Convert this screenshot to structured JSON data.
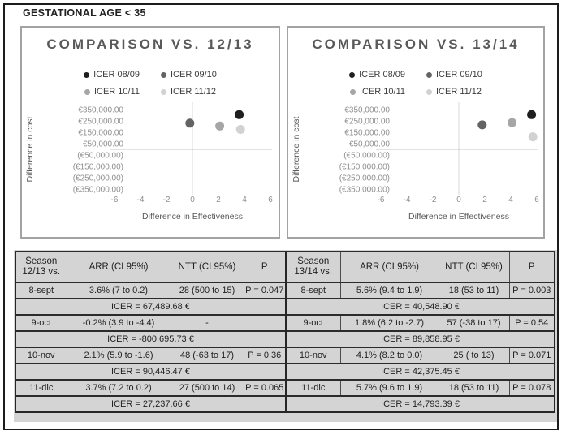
{
  "title": "GESTATIONAL AGE < 35",
  "colors": {
    "frame": "#1c1c1c",
    "chart_border": "#a3a3a3",
    "chart_title": "#595959",
    "gridline": "#d9d9d9",
    "zero_line": "#c6c6c6",
    "tick_label": "#8f8f8f",
    "axis_title": "#595959",
    "table_bg": "#d4d4d4",
    "table_border": "#262626"
  },
  "chart_data": [
    {
      "type": "scatter",
      "title": "COMPARISON VS. 12/13",
      "xlabel": "Difference in Effectiveness",
      "ylabel": "Difference in cost",
      "xlim": [
        -7.5,
        7.5
      ],
      "ylim": [
        -400000,
        400000
      ],
      "x_ticks": [
        -6,
        -4,
        -2,
        0,
        2,
        4,
        6
      ],
      "y_ticks": [
        350000,
        250000,
        150000,
        50000,
        -50000,
        -150000,
        -250000,
        -350000
      ],
      "y_tick_labels": [
        "€350,000.00",
        "€250,000.00",
        "€150,000.00",
        "€50,000.00",
        "(€50,000.00)",
        "(€150,000.00)",
        "(€250,000.00)",
        "(€350,000.00)"
      ],
      "grid": "zero-axes-only",
      "legend_position": "top",
      "series": [
        {
          "name": "ICER 08/09",
          "color": "#1f1f1f",
          "points": [
            [
              3.6,
              305000
            ]
          ]
        },
        {
          "name": "ICER 09/10",
          "color": "#636363",
          "points": [
            [
              -0.2,
              230000
            ]
          ]
        },
        {
          "name": "ICER 10/11",
          "color": "#a6a6a6",
          "points": [
            [
              2.1,
              205000
            ]
          ]
        },
        {
          "name": "ICER 11/12",
          "color": "#d2d2d2",
          "points": [
            [
              3.7,
              175000
            ]
          ]
        }
      ]
    },
    {
      "type": "scatter",
      "title": "COMPARISON VS. 13/14",
      "xlabel": "Difference in Effectiveness",
      "ylabel": "Difference in cost",
      "xlim": [
        -7.5,
        7.5
      ],
      "ylim": [
        -400000,
        400000
      ],
      "x_ticks": [
        -6,
        -4,
        -2,
        0,
        2,
        4,
        6
      ],
      "y_ticks": [
        350000,
        250000,
        150000,
        50000,
        -50000,
        -150000,
        -250000,
        -350000
      ],
      "y_tick_labels": [
        "€350,000.00",
        "€250,000.00",
        "€150,000.00",
        "€50,000.00",
        "(€50,000.00)",
        "(€150,000.00)",
        "(€250,000.00)",
        "(€350,000.00)"
      ],
      "grid": "zero-axes-only",
      "legend_position": "top",
      "series": [
        {
          "name": "ICER 08/09",
          "color": "#1f1f1f",
          "points": [
            [
              5.6,
              305000
            ]
          ]
        },
        {
          "name": "ICER 09/10",
          "color": "#636363",
          "points": [
            [
              1.8,
              215000
            ]
          ]
        },
        {
          "name": "ICER 10/11",
          "color": "#a6a6a6",
          "points": [
            [
              4.1,
              235000
            ]
          ]
        },
        {
          "name": "ICER 11/12",
          "color": "#d2d2d2",
          "points": [
            [
              5.7,
              110000
            ]
          ]
        }
      ]
    }
  ],
  "table": {
    "halves": [
      {
        "season_header": [
          "Season",
          "12/13 vs."
        ],
        "columns": [
          "ARR (CI 95%)",
          "NTT (CI 95%)",
          "P"
        ],
        "rows": [
          {
            "season": "8-sept",
            "arr": "3.6% (7 to 0.2)",
            "ntt": "28 (500 to 15)",
            "p": "P = 0.047",
            "icer": "ICER = 67,489.68 €"
          },
          {
            "season": "9-oct",
            "arr": "-0.2% (3.9 to -4.4)",
            "ntt": "-",
            "p": "",
            "icer": "ICER = -800,695.73 €"
          },
          {
            "season": "10-nov",
            "arr": "2.1% (5.9 to -1.6)",
            "ntt": "48 (-63 to 17)",
            "p": "P = 0.36",
            "icer": "ICER = 90,446.47 €"
          },
          {
            "season": "11-dic",
            "arr": "3.7% (7.2 to 0.2)",
            "ntt": "27 (500 to 14)",
            "p": "P = 0.065",
            "icer": "ICER = 27,237.66 €"
          }
        ]
      },
      {
        "season_header": [
          "Season",
          "13/14 vs."
        ],
        "columns": [
          "ARR (CI 95%)",
          "NTT (CI 95%)",
          "P"
        ],
        "rows": [
          {
            "season": "8-sept",
            "arr": "5.6% (9.4 to 1.9)",
            "ntt": "18 (53 to 11)",
            "p": "P = 0.003",
            "icer": "ICER = 40,548.90 €"
          },
          {
            "season": "9-oct",
            "arr": "1.8% (6.2 to -2.7)",
            "ntt": "57 (-38 to 17)",
            "p": "P = 0.54",
            "icer": "ICER = 89,858.95 €"
          },
          {
            "season": "10-nov",
            "arr": "4.1% (8.2 to 0.0)",
            "ntt": "25 ( to 13)",
            "p": "P = 0.071",
            "icer": "ICER = 42,375.45 €"
          },
          {
            "season": "11-dic",
            "arr": "5.7% (9.6 to 1.9)",
            "ntt": "18 (53 to 11)",
            "p": "P = 0.078",
            "icer": "ICER = 14,793.39 €"
          }
        ]
      }
    ]
  }
}
